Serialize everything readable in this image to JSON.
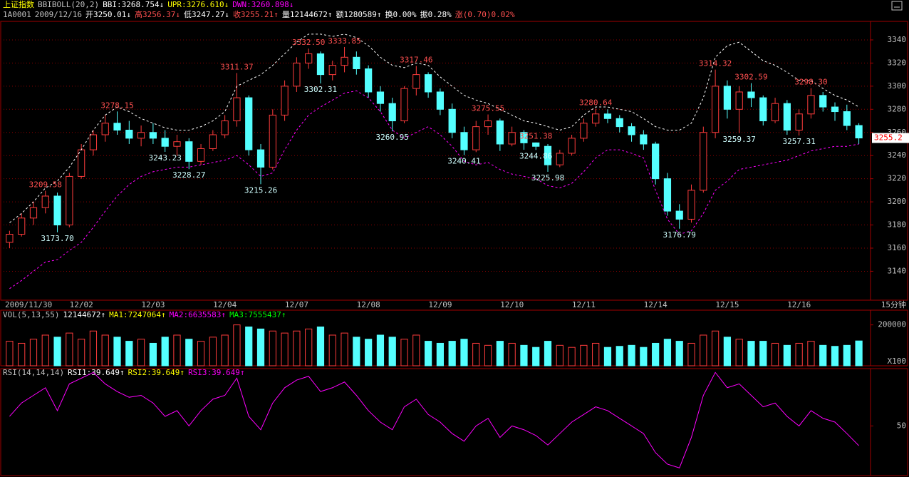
{
  "chart_data": [
    {
      "type": "candlestick",
      "header": [
        [
          {
            "text": "上证指数",
            "color": "#ffff00"
          },
          {
            "text": "BBIBOLL(20,2)",
            "color": "#c0c0c0"
          },
          {
            "text": "BBI:3268.754↓",
            "color": "#ffffff"
          },
          {
            "text": "UPR:3276.610↓",
            "color": "#ffff00"
          },
          {
            "text": "DWN:3260.898↓",
            "color": "#ff00ff"
          }
        ],
        [
          {
            "text": "1A0001",
            "color": "#c0c0c0"
          },
          {
            "text": "2009/12/16",
            "color": "#c0c0c0"
          },
          {
            "text": "开3250.01↓",
            "color": "#ffffff"
          },
          {
            "text": "高3256.37↓",
            "color": "#ff5050"
          },
          {
            "text": "低3247.27↓",
            "color": "#ffffff"
          },
          {
            "text": "收3255.21↑",
            "color": "#ff5050"
          },
          {
            "text": "量12144672↑",
            "color": "#ffffff"
          },
          {
            "text": "额1280589↑",
            "color": "#ffffff"
          },
          {
            "text": "换0.00%",
            "color": "#ffffff"
          },
          {
            "text": "振0.28%",
            "color": "#ffffff"
          },
          {
            "text": "涨(0.70)0.02%",
            "color": "#ff5050"
          }
        ]
      ],
      "categories": [
        "2009/11/30",
        null,
        null,
        null,
        null,
        null,
        "12/02",
        null,
        null,
        null,
        null,
        null,
        "12/03",
        null,
        null,
        null,
        null,
        null,
        "12/04",
        null,
        null,
        null,
        null,
        null,
        "12/07",
        null,
        null,
        null,
        null,
        null,
        "12/08",
        null,
        null,
        null,
        null,
        null,
        "12/09",
        null,
        null,
        null,
        null,
        null,
        "12/10",
        null,
        null,
        null,
        null,
        null,
        "12/11",
        null,
        null,
        null,
        null,
        null,
        "12/14",
        null,
        null,
        null,
        null,
        null,
        "12/15",
        null,
        null,
        null,
        null,
        null,
        "12/16",
        null,
        null,
        null,
        null,
        null
      ],
      "interval_label": "15分钟",
      "up_color": "#ff3c3c",
      "down_color": "#54ffff",
      "candles": [
        [
          3165,
          3175,
          3160,
          3172
        ],
        [
          3172,
          3190,
          3170,
          3186
        ],
        [
          3186,
          3200,
          3180,
          3195
        ],
        [
          3195,
          3209.58,
          3190,
          3205
        ],
        [
          3205,
          3208,
          3173.7,
          3180
        ],
        [
          3180,
          3225,
          3178,
          3222
        ],
        [
          3222,
          3250,
          3220,
          3245
        ],
        [
          3245,
          3262,
          3240,
          3258
        ],
        [
          3258,
          3275,
          3252,
          3268
        ],
        [
          3268,
          3278.15,
          3258,
          3262
        ],
        [
          3262,
          3270,
          3250,
          3255
        ],
        [
          3255,
          3266,
          3248,
          3260
        ],
        [
          3260,
          3268,
          3250,
          3255
        ],
        [
          3255,
          3262,
          3243.23,
          3248
        ],
        [
          3248,
          3258,
          3240,
          3252
        ],
        [
          3252,
          3255,
          3228.27,
          3235
        ],
        [
          3235,
          3250,
          3232,
          3246
        ],
        [
          3246,
          3262,
          3244,
          3258
        ],
        [
          3258,
          3275,
          3255,
          3270
        ],
        [
          3270,
          3311.37,
          3265,
          3290
        ],
        [
          3290,
          3292,
          3240,
          3245
        ],
        [
          3245,
          3250,
          3215.26,
          3230
        ],
        [
          3230,
          3280,
          3228,
          3275
        ],
        [
          3275,
          3305,
          3270,
          3300
        ],
        [
          3300,
          3325,
          3295,
          3320
        ],
        [
          3320,
          3332.5,
          3315,
          3328
        ],
        [
          3328,
          3330,
          3302.31,
          3310
        ],
        [
          3310,
          3322,
          3305,
          3318
        ],
        [
          3318,
          3333.85,
          3312,
          3325
        ],
        [
          3325,
          3330,
          3310,
          3315
        ],
        [
          3315,
          3318,
          3290,
          3295
        ],
        [
          3295,
          3300,
          3278,
          3285
        ],
        [
          3285,
          3290,
          3260.95,
          3270
        ],
        [
          3270,
          3300,
          3268,
          3298
        ],
        [
          3298,
          3317.46,
          3292,
          3310
        ],
        [
          3310,
          3312,
          3290,
          3295
        ],
        [
          3295,
          3298,
          3275,
          3280
        ],
        [
          3280,
          3285,
          3255,
          3260
        ],
        [
          3260,
          3265,
          3240.41,
          3245
        ],
        [
          3245,
          3270,
          3243,
          3265
        ],
        [
          3265,
          3275.55,
          3258,
          3270
        ],
        [
          3270,
          3272,
          3244,
          3250
        ],
        [
          3250,
          3265,
          3248,
          3260
        ],
        [
          3260,
          3262,
          3245,
          3251
        ],
        [
          3251,
          3251.38,
          3244.86,
          3248
        ],
        [
          3248,
          3250,
          3225.98,
          3232
        ],
        [
          3232,
          3245,
          3230,
          3242
        ],
        [
          3242,
          3258,
          3240,
          3255
        ],
        [
          3255,
          3272,
          3252,
          3268
        ],
        [
          3268,
          3280.64,
          3265,
          3276
        ],
        [
          3276,
          3280,
          3268,
          3272
        ],
        [
          3272,
          3275,
          3260,
          3265
        ],
        [
          3265,
          3268,
          3252,
          3258
        ],
        [
          3258,
          3262,
          3245,
          3250
        ],
        [
          3250,
          3252,
          3215,
          3220
        ],
        [
          3220,
          3225,
          3188,
          3192
        ],
        [
          3192,
          3198,
          3176.79,
          3185
        ],
        [
          3185,
          3215,
          3182,
          3210
        ],
        [
          3210,
          3265,
          3208,
          3260
        ],
        [
          3260,
          3314.32,
          3255,
          3300
        ],
        [
          3300,
          3305,
          3272,
          3280
        ],
        [
          3280,
          3300,
          3259.37,
          3295
        ],
        [
          3295,
          3302.59,
          3282,
          3290
        ],
        [
          3290,
          3292,
          3266,
          3270
        ],
        [
          3270,
          3290,
          3268,
          3285
        ],
        [
          3285,
          3288,
          3258,
          3262
        ],
        [
          3262,
          3280,
          3257.31,
          3276
        ],
        [
          3276,
          3298.3,
          3272,
          3292
        ],
        [
          3292,
          3295,
          3278,
          3282
        ],
        [
          3282,
          3286,
          3270,
          3278
        ],
        [
          3278,
          3284,
          3262,
          3266
        ],
        [
          3266,
          3268,
          3250,
          3255.21
        ]
      ],
      "upper_band": {
        "color": "#ffffff",
        "values": [
          3182,
          3190,
          3200,
          3212,
          3218,
          3230,
          3245,
          3262,
          3275,
          3282,
          3278,
          3272,
          3268,
          3264,
          3262,
          3262,
          3265,
          3270,
          3278,
          3300,
          3305,
          3310,
          3318,
          3328,
          3338,
          3345,
          3345,
          3343,
          3345,
          3342,
          3335,
          3325,
          3318,
          3316,
          3320,
          3318,
          3308,
          3300,
          3292,
          3288,
          3285,
          3280,
          3275,
          3270,
          3268,
          3265,
          3262,
          3265,
          3275,
          3282,
          3282,
          3280,
          3278,
          3272,
          3265,
          3262,
          3262,
          3268,
          3290,
          3325,
          3335,
          3338,
          3330,
          3322,
          3318,
          3312,
          3305,
          3305,
          3298,
          3292,
          3288,
          3282
        ]
      },
      "lower_band": {
        "color": "#ff00ff",
        "values": [
          3125,
          3132,
          3140,
          3148,
          3150,
          3158,
          3165,
          3178,
          3192,
          3205,
          3215,
          3222,
          3226,
          3228,
          3230,
          3230,
          3232,
          3234,
          3236,
          3240,
          3232,
          3222,
          3225,
          3245,
          3262,
          3275,
          3282,
          3288,
          3294,
          3296,
          3290,
          3278,
          3262,
          3255,
          3260,
          3265,
          3258,
          3248,
          3235,
          3232,
          3234,
          3228,
          3224,
          3222,
          3220,
          3214,
          3212,
          3216,
          3226,
          3238,
          3245,
          3245,
          3242,
          3238,
          3210,
          3185,
          3172,
          3175,
          3190,
          3210,
          3218,
          3228,
          3230,
          3232,
          3234,
          3236,
          3240,
          3244,
          3246,
          3248,
          3248,
          3250
        ]
      },
      "annotations": [
        {
          "index": 3,
          "at": "high",
          "value": 3209.58,
          "label": "3209.58"
        },
        {
          "index": 4,
          "at": "low",
          "value": 3173.7,
          "label": "3173.70"
        },
        {
          "index": 9,
          "at": "high",
          "value": 3278.15,
          "label": "3278.15"
        },
        {
          "index": 13,
          "at": "low",
          "value": 3243.23,
          "label": "3243.23"
        },
        {
          "index": 15,
          "at": "low",
          "value": 3228.27,
          "label": "3228.27"
        },
        {
          "index": 19,
          "at": "high",
          "value": 3311.37,
          "label": "3311.37"
        },
        {
          "index": 21,
          "at": "low",
          "value": 3215.26,
          "label": "3215.26"
        },
        {
          "index": 25,
          "at": "high",
          "value": 3332.5,
          "label": "3332.50"
        },
        {
          "index": 26,
          "at": "low",
          "value": 3302.31,
          "label": "3302.31"
        },
        {
          "index": 28,
          "at": "high",
          "value": 3333.85,
          "label": "3333.85"
        },
        {
          "index": 32,
          "at": "low",
          "value": 3260.95,
          "label": "3260.95"
        },
        {
          "index": 34,
          "at": "high",
          "value": 3317.46,
          "label": "3317.46"
        },
        {
          "index": 38,
          "at": "low",
          "value": 3240.41,
          "label": "3240.41"
        },
        {
          "index": 40,
          "at": "high",
          "value": 3275.55,
          "label": "3275.55"
        },
        {
          "index": 44,
          "at": "high",
          "value": 3251.38,
          "label": "3251.38"
        },
        {
          "index": 44,
          "at": "low",
          "value": 3244.86,
          "label": "3244.86"
        },
        {
          "index": 45,
          "at": "low",
          "value": 3225.98,
          "label": "3225.98"
        },
        {
          "index": 49,
          "at": "high",
          "value": 3280.64,
          "label": "3280.64"
        },
        {
          "index": 56,
          "at": "low",
          "value": 3176.79,
          "label": "3176.79"
        },
        {
          "index": 59,
          "at": "high",
          "value": 3314.32,
          "label": "3314.32"
        },
        {
          "index": 61,
          "at": "low",
          "value": 3259.37,
          "label": "3259.37"
        },
        {
          "index": 62,
          "at": "high",
          "value": 3302.59,
          "label": "3302.59"
        },
        {
          "index": 66,
          "at": "low",
          "value": 3257.31,
          "label": "3257.31"
        },
        {
          "index": 67,
          "at": "high",
          "value": 3298.3,
          "label": "3298.30"
        }
      ],
      "last_price": {
        "value": 3255.21,
        "label": "3255.2"
      },
      "ylim": [
        3115,
        3356
      ],
      "yticks": [
        3140,
        3160,
        3180,
        3200,
        3220,
        3240,
        3260,
        3280,
        3300,
        3320,
        3340
      ],
      "grid": true
    },
    {
      "type": "bar",
      "header": [
        [
          {
            "text": "VOL(5,13,55)",
            "color": "#c0c0c0"
          },
          {
            "text": "12144672↑",
            "color": "#ffffff"
          },
          {
            "text": "MA1:7247064↑",
            "color": "#ffff00"
          },
          {
            "text": "MA2:6635583↑",
            "color": "#ff00ff"
          },
          {
            "text": "MA3:7555437↑",
            "color": "#00ff00"
          }
        ]
      ],
      "values": [
        120000,
        110000,
        130000,
        150000,
        140000,
        160000,
        130000,
        170000,
        150000,
        140000,
        120000,
        130000,
        110000,
        140000,
        150000,
        130000,
        120000,
        140000,
        150000,
        200000,
        190000,
        180000,
        170000,
        160000,
        170000,
        180000,
        190000,
        150000,
        160000,
        140000,
        130000,
        150000,
        140000,
        130000,
        150000,
        120000,
        110000,
        120000,
        130000,
        110000,
        100000,
        120000,
        110000,
        100000,
        90000,
        120000,
        100000,
        90000,
        100000,
        110000,
        90000,
        95000,
        100000,
        90000,
        110000,
        130000,
        120000,
        110000,
        150000,
        170000,
        140000,
        130000,
        120000,
        120000,
        110000,
        100000,
        110000,
        120000,
        100000,
        95000,
        100000,
        121447
      ],
      "unit_label": "X100",
      "ylim": [
        0,
        272000
      ],
      "yticks": [
        200000
      ]
    },
    {
      "type": "line",
      "header": [
        [
          {
            "text": "RSI(14,14,14)",
            "color": "#c0c0c0"
          },
          {
            "text": "RSI1:39.649↑",
            "color": "#ffffff"
          },
          {
            "text": "RSI2:39.649↑",
            "color": "#ffff00"
          },
          {
            "text": "RSI3:39.649↑",
            "color": "#ff00ff"
          }
        ]
      ],
      "color": "#ff00ff",
      "values": [
        55,
        62,
        66,
        70,
        58,
        72,
        75,
        78,
        72,
        68,
        65,
        66,
        62,
        55,
        58,
        50,
        58,
        64,
        66,
        75,
        55,
        48,
        62,
        70,
        74,
        76,
        68,
        70,
        73,
        66,
        58,
        52,
        48,
        60,
        64,
        56,
        52,
        46,
        42,
        50,
        54,
        44,
        50,
        48,
        45,
        40,
        46,
        52,
        56,
        60,
        58,
        54,
        50,
        46,
        36,
        30,
        28,
        44,
        66,
        78,
        70,
        72,
        66,
        60,
        62,
        55,
        50,
        58,
        54,
        52,
        46,
        39.649
      ],
      "ylim": [
        24,
        80
      ],
      "yticks": [
        50
      ]
    }
  ]
}
